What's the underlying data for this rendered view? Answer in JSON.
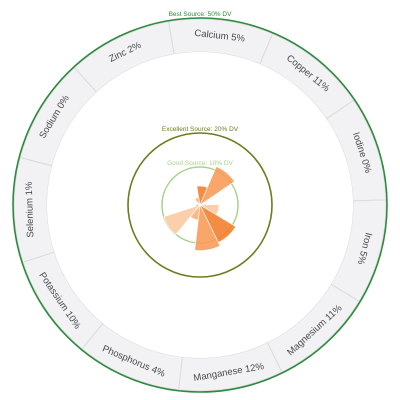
{
  "chart_data": {
    "type": "radial_bar",
    "rings": [
      {
        "label": "Best Source: 50% DV",
        "value": 50,
        "color": "#2e8b3e"
      },
      {
        "label": "Excellent Source: 20% DV",
        "value": 20,
        "color": "#6b7d1e"
      },
      {
        "label": "Good Source: 10% DV",
        "value": 10,
        "color": "#a8d28a"
      }
    ],
    "categories": [
      {
        "name": "Calcium",
        "value": 5,
        "label": "Calcium 5%"
      },
      {
        "name": "Copper",
        "value": 11,
        "label": "Copper 11%"
      },
      {
        "name": "Iodine",
        "value": 0,
        "label": "Iodine 0%"
      },
      {
        "name": "Iron",
        "value": 5,
        "label": "Iron 5%"
      },
      {
        "name": "Magnesium",
        "value": 11,
        "label": "Magnesium 11%"
      },
      {
        "name": "Manganese",
        "value": 12,
        "label": "Manganese 12%"
      },
      {
        "name": "Phosphorus",
        "value": 4,
        "label": "Phosphorus 4%"
      },
      {
        "name": "Potassium",
        "value": 10,
        "label": "Potassium 10%"
      },
      {
        "name": "Selenium",
        "value": 1,
        "label": "Selenium 1%"
      },
      {
        "name": "Sodium",
        "value": 0,
        "label": "Sodium 0%"
      },
      {
        "name": "Zinc",
        "value": 2,
        "label": "Zinc 2%"
      }
    ],
    "bar_colors": [
      "#f47c2a",
      "#f89a55",
      "#f9b07a",
      "#fbc8a0"
    ],
    "outer_band_fill": "#f2f1f3",
    "outer_band_stroke": "#dcdbdf"
  }
}
